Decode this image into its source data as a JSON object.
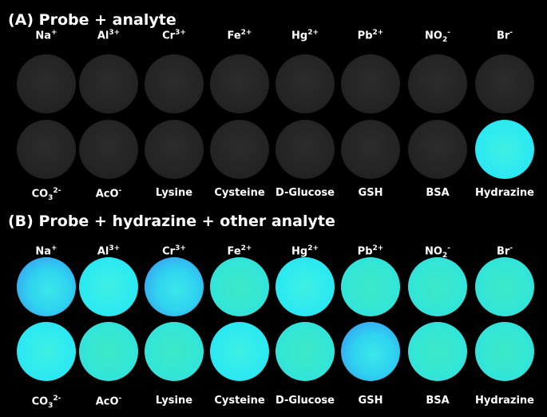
{
  "panel_a": {
    "title": "(A) Probe + analyte",
    "top_labels": [
      {
        "base": "Na",
        "sup": "+",
        "sub": ""
      },
      {
        "base": "Al",
        "sup": "3+",
        "sub": ""
      },
      {
        "base": "Cr",
        "sup": "3+",
        "sub": ""
      },
      {
        "base": "Fe",
        "sup": "2+",
        "sub": ""
      },
      {
        "base": "Hg",
        "sup": "2+",
        "sub": ""
      },
      {
        "base": "Pb",
        "sup": "2+",
        "sub": ""
      },
      {
        "base": "NO",
        "sup": "-",
        "sub": "2"
      },
      {
        "base": "Br",
        "sup": "-",
        "sub": ""
      }
    ],
    "bottom_labels": [
      {
        "base": "CO",
        "sup": "2-",
        "sub": "3"
      },
      {
        "base": "AcO",
        "sup": "-",
        "sub": ""
      },
      {
        "base": "Lysine",
        "sup": "",
        "sub": ""
      },
      {
        "base": "Cysteine",
        "sup": "",
        "sub": ""
      },
      {
        "base": "D-Glucose",
        "sup": "",
        "sub": ""
      },
      {
        "base": "GSH",
        "sup": "",
        "sub": ""
      },
      {
        "base": "BSA",
        "sup": "",
        "sub": ""
      },
      {
        "base": "Hydrazine",
        "sup": "",
        "sub": ""
      }
    ],
    "row1_wells": [
      "dark",
      "dark",
      "dark",
      "dark",
      "dark",
      "dark",
      "dark",
      "dark"
    ],
    "row2_wells": [
      "dark",
      "dark",
      "dark",
      "dark",
      "dark",
      "dark",
      "dark",
      "glow"
    ]
  },
  "panel_b": {
    "title": "(B) Probe + hydrazine + other analyte",
    "top_labels": [
      {
        "base": "Na",
        "sup": "+",
        "sub": ""
      },
      {
        "base": "Al",
        "sup": "3+",
        "sub": ""
      },
      {
        "base": "Cr",
        "sup": "3+",
        "sub": ""
      },
      {
        "base": "Fe",
        "sup": "2+",
        "sub": ""
      },
      {
        "base": "Hg",
        "sup": "2+",
        "sub": ""
      },
      {
        "base": "Pb",
        "sup": "2+",
        "sub": ""
      },
      {
        "base": "NO",
        "sup": "-",
        "sub": "2"
      },
      {
        "base": "Br",
        "sup": "-",
        "sub": ""
      }
    ],
    "bottom_labels": [
      {
        "base": "CO",
        "sup": "2-",
        "sub": "3"
      },
      {
        "base": "AcO",
        "sup": "-",
        "sub": ""
      },
      {
        "base": "Lysine",
        "sup": "",
        "sub": ""
      },
      {
        "base": "Cysteine",
        "sup": "",
        "sub": ""
      },
      {
        "base": "D-Glucose",
        "sup": "",
        "sub": ""
      },
      {
        "base": "GSH",
        "sup": "",
        "sub": ""
      },
      {
        "base": "BSA",
        "sup": "",
        "sub": ""
      },
      {
        "base": "Hydrazine",
        "sup": "",
        "sub": ""
      }
    ],
    "row1_wells": [
      "glow-blue",
      "glow",
      "glow-blue",
      "glow-green",
      "glow",
      "glow-green",
      "glow-green",
      "glow-green"
    ],
    "row2_wells": [
      "glow",
      "glow-green",
      "glow-green",
      "glow",
      "glow-green",
      "glow-blue",
      "glow-green",
      "glow-green"
    ]
  },
  "colors": {
    "background": "#000000",
    "dark_well": "#242424",
    "fluorescent_cyan": "#2eeaf0",
    "fluorescent_blue": "#3a8cf4",
    "fluorescent_green": "#34e6d4"
  }
}
